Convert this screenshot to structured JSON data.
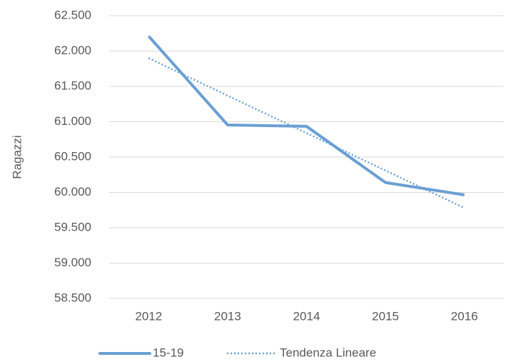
{
  "chart_data": {
    "type": "line",
    "y_label": "Ragazzi",
    "categories": [
      "2012",
      "2013",
      "2014",
      "2015",
      "2016"
    ],
    "series": [
      {
        "name": "15-19",
        "color": "#6a9fd3",
        "style": "solid",
        "values": [
          62210,
          60955,
          60935,
          60140,
          59965
        ]
      },
      {
        "name": "Tendenza Lineare",
        "color": "#6a9fd3",
        "style": "dotted",
        "values": [
          61900,
          61370,
          60840,
          60310,
          59780
        ]
      }
    ],
    "ylim": [
      58500,
      62500
    ],
    "yticks": [
      {
        "value": 58500,
        "label": "58.500"
      },
      {
        "value": 59000,
        "label": "59.000"
      },
      {
        "value": 59500,
        "label": "59.500"
      },
      {
        "value": 60000,
        "label": "60.000"
      },
      {
        "value": 60500,
        "label": "60.500"
      },
      {
        "value": 61000,
        "label": "61.000"
      },
      {
        "value": 61500,
        "label": "61.500"
      },
      {
        "value": 62000,
        "label": "62.000"
      },
      {
        "value": 62500,
        "label": "62.500"
      }
    ],
    "grid": true,
    "legend": "bottom"
  }
}
